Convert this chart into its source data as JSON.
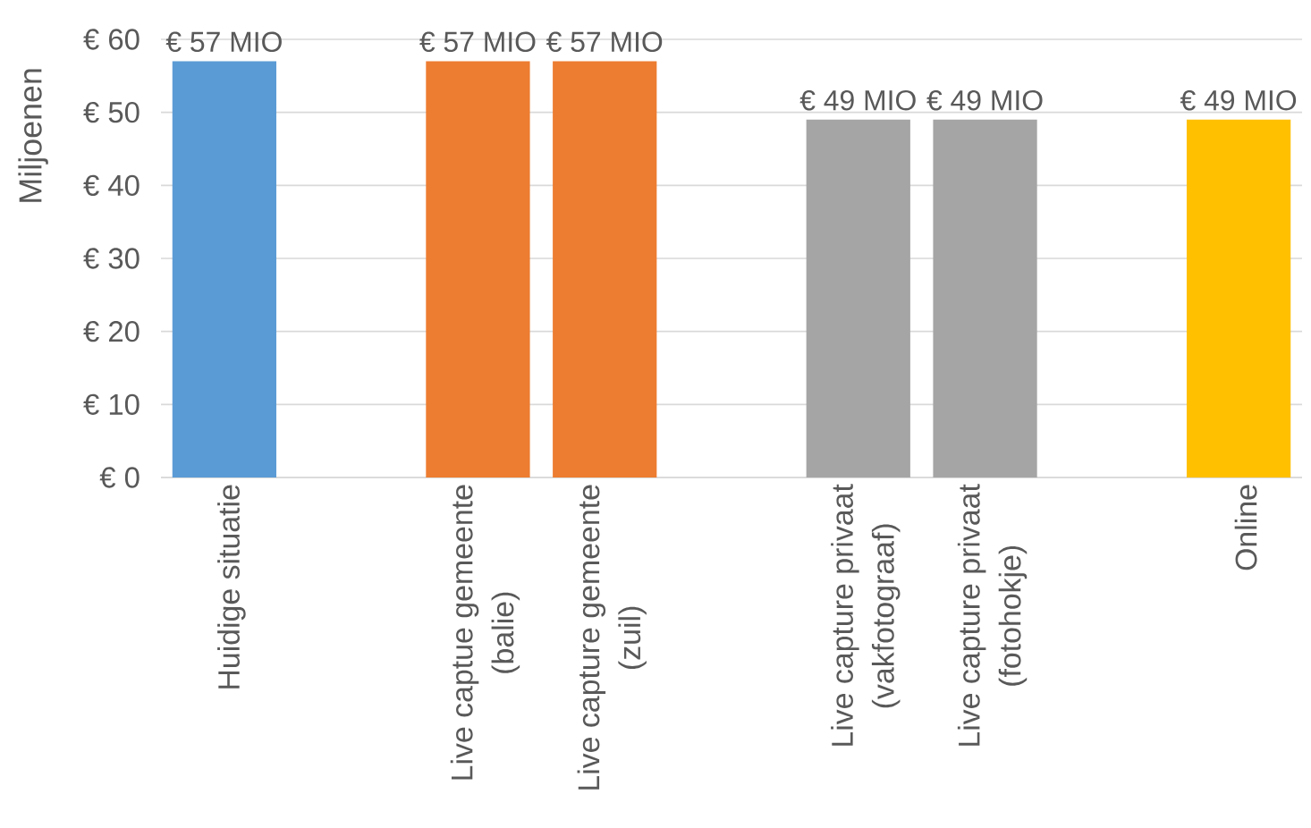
{
  "chart_data": {
    "type": "bar",
    "ylabel": "Miljoenen",
    "categories": [
      "Huidige situatie",
      null,
      "Live captue gemeente (balie)",
      "Live capture gemeente (zuil)",
      null,
      "Live capture privaat (vakfotograaf)",
      "Live capture privaat (fotohokje)",
      null,
      "Online"
    ],
    "values": [
      57,
      null,
      57,
      57,
      null,
      49,
      49,
      null,
      49
    ],
    "colors": [
      "#5b9bd5",
      null,
      "#ed7d31",
      "#ed7d31",
      null,
      "#a5a5a5",
      "#a5a5a5",
      null,
      "#ffc000"
    ],
    "value_labels": [
      "€ 57 MIO",
      null,
      "€ 57 MIO",
      "€ 57 MIO",
      null,
      "€ 49 MIO",
      "€ 49 MIO",
      null,
      "€ 49 MIO"
    ],
    "ylim": [
      0,
      60
    ],
    "yticks": [
      {
        "value": 0,
        "label": "€ 0"
      },
      {
        "value": 10,
        "label": "€ 10"
      },
      {
        "value": 20,
        "label": "€ 20"
      },
      {
        "value": 30,
        "label": "€ 30"
      },
      {
        "value": 40,
        "label": "€ 40"
      },
      {
        "value": 50,
        "label": "€ 50"
      },
      {
        "value": 60,
        "label": "€ 60"
      }
    ],
    "grid": "y"
  }
}
